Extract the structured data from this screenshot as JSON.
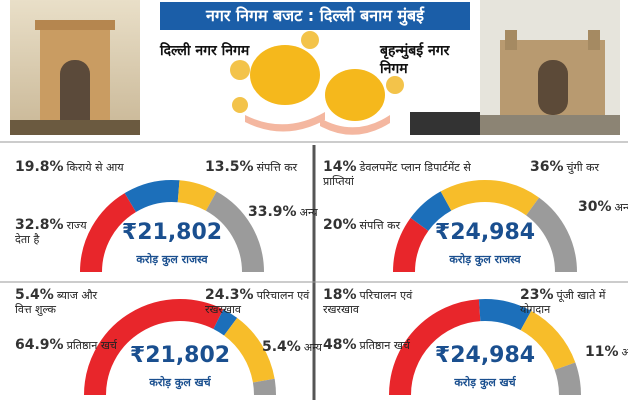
{
  "header": {
    "title": "नगर निगम बजट : दिल्ली बनाम मुंबई",
    "left_city": "दिल्ली नगर निगम",
    "right_city": "बृहन्मुंबई नगर निगम"
  },
  "chart_data": [
    {
      "type": "donut",
      "categories": [
        "राज्य देता है",
        "किराये से आय",
        "संपत्ति कर",
        "अन्य"
      ],
      "values": [
        32.8,
        19.8,
        13.5,
        33.9
      ],
      "value_labels": [
        "32.8%",
        "19.8%",
        "13.5%",
        "33.9%"
      ],
      "colors": [
        "#e8262b",
        "#1c6fba",
        "#f7bd2a",
        "#9b9b9b"
      ],
      "total": {
        "value": 21802,
        "label": "₹21,802"
      },
      "total_caption": "करोड़ कुल राजस्व"
    },
    {
      "type": "donut",
      "categories": [
        "संपत्ति कर",
        "डेवलपमेंट प्लान डिपार्टमेंट से प्राप्तियां",
        "चुंगी कर",
        "अन्य"
      ],
      "values": [
        20,
        14,
        36,
        30
      ],
      "value_labels": [
        "20%",
        "14%",
        "36%",
        "30%"
      ],
      "colors": [
        "#e8262b",
        "#1c6fba",
        "#f7bd2a",
        "#9b9b9b"
      ],
      "total": {
        "value": 24984,
        "label": "₹24,984"
      },
      "total_caption": "करोड़ कुल राजस्व"
    },
    {
      "type": "donut",
      "categories": [
        "प्रतिष्ठान खर्च",
        "ब्याज और वित्त शुल्क",
        "परिचालन एवं रखरखाव",
        "अन्य"
      ],
      "values": [
        64.9,
        5.4,
        24.3,
        5.4
      ],
      "value_labels": [
        "64.9%",
        "5.4%",
        "24.3%",
        "5.4%"
      ],
      "colors": [
        "#e8262b",
        "#1c6fba",
        "#f7bd2a",
        "#9b9b9b"
      ],
      "total": {
        "value": 21802,
        "label": "₹21,802"
      },
      "total_caption": "करोड़ कुल खर्च"
    },
    {
      "type": "donut",
      "categories": [
        "प्रतिष्ठान खर्च",
        "परिचालन एवं रखरखाव",
        "पूंजी खाते में योगदान",
        "अन्य"
      ],
      "values": [
        48,
        18,
        23,
        11
      ],
      "value_labels": [
        "48%",
        "18%",
        "23%",
        "11%"
      ],
      "colors": [
        "#e8262b",
        "#1c6fba",
        "#f7bd2a",
        "#9b9b9b"
      ],
      "total": {
        "value": 24984,
        "label": "₹24,984"
      },
      "total_caption": "करोड़ कुल खर्च"
    }
  ]
}
